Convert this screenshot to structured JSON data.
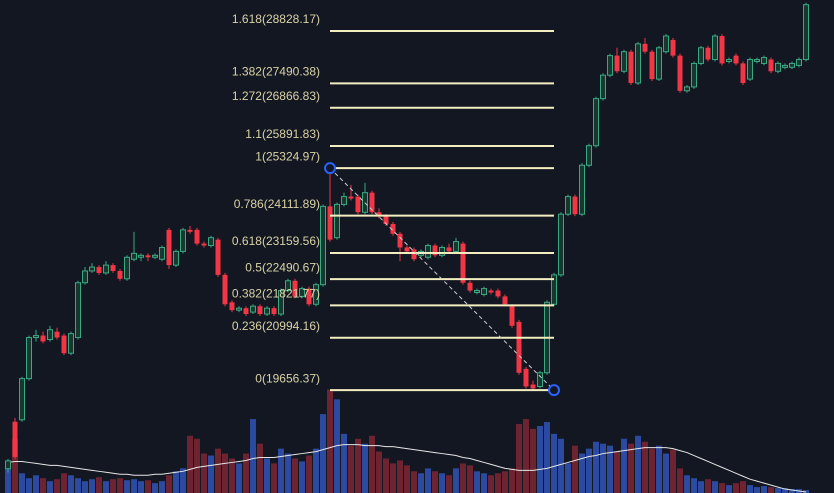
{
  "chart_data": {
    "type": "candlestick",
    "ylim": [
      17030,
      29620
    ],
    "vlim": [
      0,
      500
    ],
    "up_color": "#3aa883",
    "down_color": "#f23645",
    "volume_up_color": "#2b4aa0",
    "volume_down_color": "#6e2331",
    "fib_color": "#f3eec0",
    "fib_levels": [
      {
        "value": 28828.17,
        "label": "1.618(28828.17)"
      },
      {
        "value": 27490.38,
        "label": "1.382(27490.38)"
      },
      {
        "value": 26866.83,
        "label": "1.272(26866.83)"
      },
      {
        "value": 25891.83,
        "label": "1.1(25891.83)"
      },
      {
        "value": 25324.97,
        "label": "1(25324.97)"
      },
      {
        "value": 24111.89,
        "label": "0.786(24111.89)"
      },
      {
        "value": 23159.56,
        "label": "0.618(23159.56)"
      },
      {
        "value": 22490.67,
        "label": "0.5(22490.67)"
      },
      {
        "value": 21821.77,
        "label": "0.382(21821.77)"
      },
      {
        "value": 20994.16,
        "label": "0.236(20994.16)"
      },
      {
        "value": 19656.37,
        "label": "0(19656.37)"
      }
    ],
    "ohlc": [
      [
        17650,
        17900,
        17550,
        17850
      ],
      [
        18850,
        18950,
        17900,
        17950
      ],
      [
        18900,
        20000,
        18850,
        19950
      ],
      [
        19950,
        21050,
        19900,
        21000
      ],
      [
        21000,
        21200,
        20900,
        21050
      ],
      [
        21050,
        21150,
        20850,
        20900
      ],
      [
        20950,
        21300,
        20900,
        21200
      ],
      [
        21150,
        21250,
        20950,
        21000
      ],
      [
        21050,
        21100,
        20550,
        20600
      ],
      [
        20600,
        21150,
        20550,
        21100
      ],
      [
        21000,
        22450,
        20950,
        22400
      ],
      [
        22400,
        22800,
        22350,
        22700
      ],
      [
        22700,
        22900,
        22650,
        22800
      ],
      [
        22800,
        22850,
        22600,
        22650
      ],
      [
        22650,
        22950,
        22600,
        22850
      ],
      [
        22850,
        22900,
        22650,
        22700
      ],
      [
        22700,
        22750,
        22450,
        22500
      ],
      [
        22500,
        23100,
        22450,
        23050
      ],
      [
        23000,
        23700,
        22950,
        23150
      ],
      [
        23050,
        23150,
        22950,
        23100
      ],
      [
        23100,
        23150,
        22950,
        23050
      ],
      [
        23050,
        23150,
        23000,
        23100
      ],
      [
        23000,
        23350,
        22950,
        23300
      ],
      [
        23750,
        23800,
        22750,
        22850
      ],
      [
        22850,
        23250,
        22800,
        23200
      ],
      [
        23200,
        23800,
        23150,
        23750
      ],
      [
        23750,
        23850,
        23650,
        23700
      ],
      [
        23750,
        23800,
        23350,
        23400
      ],
      [
        23400,
        23450,
        23300,
        23350
      ],
      [
        23350,
        23600,
        23300,
        23550
      ],
      [
        23500,
        23550,
        22550,
        22600
      ],
      [
        22600,
        22650,
        21800,
        21850
      ],
      [
        21900,
        21950,
        21650,
        21700
      ],
      [
        21700,
        21800,
        21650,
        21750
      ],
      [
        21750,
        21800,
        21550,
        21600
      ],
      [
        21650,
        21850,
        21600,
        21800
      ],
      [
        21800,
        21850,
        21550,
        21600
      ],
      [
        21600,
        21800,
        21550,
        21750
      ],
      [
        21750,
        21800,
        21550,
        21600
      ],
      [
        21600,
        22250,
        21550,
        22200
      ],
      [
        22200,
        22500,
        22150,
        22450
      ],
      [
        22450,
        22500,
        22000,
        22050
      ],
      [
        22050,
        22300,
        22000,
        22250
      ],
      [
        22250,
        22300,
        21800,
        21850
      ],
      [
        21850,
        22400,
        21800,
        22350
      ],
      [
        22350,
        24400,
        22300,
        24350
      ],
      [
        24350,
        25325,
        23450,
        23500
      ],
      [
        23550,
        24450,
        23500,
        24400
      ],
      [
        24400,
        24700,
        24350,
        24600
      ],
      [
        24600,
        24900,
        24500,
        24550
      ],
      [
        24600,
        24650,
        24150,
        24200
      ],
      [
        24200,
        24950,
        24150,
        24700
      ],
      [
        24700,
        24750,
        24150,
        24200
      ],
      [
        24200,
        24300,
        24050,
        24100
      ],
      [
        24100,
        24150,
        23850,
        23900
      ],
      [
        23900,
        23950,
        23600,
        23650
      ],
      [
        23650,
        23700,
        22950,
        23300
      ],
      [
        23300,
        23350,
        23150,
        23200
      ],
      [
        23250,
        23300,
        22950,
        23000
      ],
      [
        23100,
        23250,
        23050,
        23200
      ],
      [
        23050,
        23400,
        23000,
        23350
      ],
      [
        23350,
        23400,
        23050,
        23100
      ],
      [
        23100,
        23350,
        23050,
        23300
      ],
      [
        23300,
        23400,
        23150,
        23200
      ],
      [
        23200,
        23550,
        23150,
        23450
      ],
      [
        23400,
        23450,
        22350,
        22400
      ],
      [
        22400,
        22450,
        22150,
        22200
      ],
      [
        22150,
        22250,
        22100,
        22200
      ],
      [
        22100,
        22300,
        22050,
        22250
      ],
      [
        22200,
        22250,
        22100,
        22150
      ],
      [
        22200,
        22250,
        22000,
        22050
      ],
      [
        22050,
        22100,
        21800,
        21850
      ],
      [
        21800,
        21850,
        21250,
        21300
      ],
      [
        21400,
        21450,
        20050,
        20100
      ],
      [
        20200,
        20250,
        19700,
        19750
      ],
      [
        19800,
        19900,
        19656,
        19700
      ],
      [
        19750,
        20150,
        19700,
        20100
      ],
      [
        20100,
        21950,
        20050,
        21900
      ],
      [
        21850,
        22650,
        21800,
        22600
      ],
      [
        22600,
        24200,
        22550,
        24150
      ],
      [
        24150,
        24650,
        24100,
        24600
      ],
      [
        24600,
        24650,
        24100,
        24150
      ],
      [
        24150,
        25450,
        24100,
        25400
      ],
      [
        25400,
        25950,
        25350,
        25900
      ],
      [
        25900,
        27150,
        25850,
        27100
      ],
      [
        27100,
        27750,
        27050,
        27700
      ],
      [
        27700,
        28250,
        27650,
        28200
      ],
      [
        28200,
        28400,
        27750,
        27800
      ],
      [
        27800,
        28350,
        27750,
        28300
      ],
      [
        28300,
        28350,
        27450,
        27500
      ],
      [
        27500,
        28550,
        27450,
        28500
      ],
      [
        28500,
        28650,
        28250,
        28300
      ],
      [
        28300,
        28350,
        27550,
        27600
      ],
      [
        27600,
        28450,
        27550,
        28400
      ],
      [
        28300,
        28750,
        28250,
        28700
      ],
      [
        28600,
        28650,
        28150,
        28200
      ],
      [
        28200,
        28250,
        27250,
        27300
      ],
      [
        27300,
        27450,
        27250,
        27400
      ],
      [
        27400,
        28050,
        27350,
        28000
      ],
      [
        28000,
        28450,
        27950,
        28400
      ],
      [
        28400,
        28450,
        28050,
        28100
      ],
      [
        28100,
        28750,
        28050,
        28700
      ],
      [
        28700,
        28750,
        27950,
        28000
      ],
      [
        28050,
        28150,
        28000,
        28100
      ],
      [
        28200,
        28250,
        27950,
        28000
      ],
      [
        28000,
        28050,
        27450,
        27500
      ],
      [
        27600,
        28150,
        27550,
        28100
      ],
      [
        28050,
        28150,
        28000,
        28100
      ],
      [
        28000,
        28200,
        27950,
        28150
      ],
      [
        28100,
        28150,
        27750,
        27800
      ],
      [
        27800,
        28050,
        27750,
        28000
      ],
      [
        27900,
        28000,
        27850,
        27950
      ],
      [
        27900,
        28050,
        27850,
        28000
      ],
      [
        27950,
        28150,
        27900,
        28100
      ],
      [
        28100,
        29550,
        28050,
        29500
      ]
    ],
    "volume": [
      25,
      55,
      20,
      15,
      18,
      15,
      12,
      14,
      20,
      18,
      15,
      12,
      14,
      16,
      12,
      14,
      15,
      13,
      14,
      12,
      13,
      10,
      12,
      18,
      22,
      25,
      58,
      55,
      40,
      38,
      45,
      40,
      35,
      30,
      40,
      75,
      50,
      35,
      30,
      45,
      40,
      35,
      32,
      38,
      45,
      80,
      105,
      95,
      60,
      48,
      55,
      50,
      58,
      42,
      35,
      30,
      33,
      28,
      22,
      20,
      25,
      22,
      20,
      18,
      25,
      30,
      28,
      22,
      20,
      18,
      20,
      22,
      25,
      70,
      75,
      65,
      68,
      72,
      60,
      55,
      30,
      48,
      40,
      45,
      52,
      50,
      48,
      42,
      55,
      50,
      58,
      52,
      45,
      48,
      40,
      44,
      25,
      18,
      15,
      12,
      14,
      12,
      10,
      8,
      10,
      12,
      8,
      6,
      7,
      6,
      5,
      5,
      4,
      4,
      3
    ],
    "volume_ma": [
      31,
      32,
      32,
      31,
      30,
      29,
      28,
      28,
      27,
      26,
      25,
      24,
      23,
      22,
      21,
      20,
      19,
      19,
      18,
      18,
      18,
      19,
      19,
      20,
      21,
      22,
      24,
      26,
      27,
      28,
      29,
      30,
      31,
      32,
      33,
      35,
      36,
      36,
      36,
      37,
      38,
      39,
      40,
      41,
      42,
      44,
      46,
      48,
      49,
      49,
      49,
      48,
      48,
      48,
      47,
      47,
      46,
      45,
      44,
      43,
      42,
      41,
      40,
      39,
      38,
      36,
      35,
      33,
      31,
      29,
      27,
      25,
      24,
      23,
      23,
      23,
      24,
      25,
      27,
      29,
      31,
      33,
      35,
      37,
      38,
      40,
      41,
      42,
      43,
      44,
      45,
      46,
      46,
      46,
      46,
      45,
      43,
      41,
      38,
      35,
      32,
      29,
      26,
      23,
      20,
      17,
      14,
      12,
      10,
      8,
      6,
      4,
      3,
      2,
      1
    ]
  }
}
